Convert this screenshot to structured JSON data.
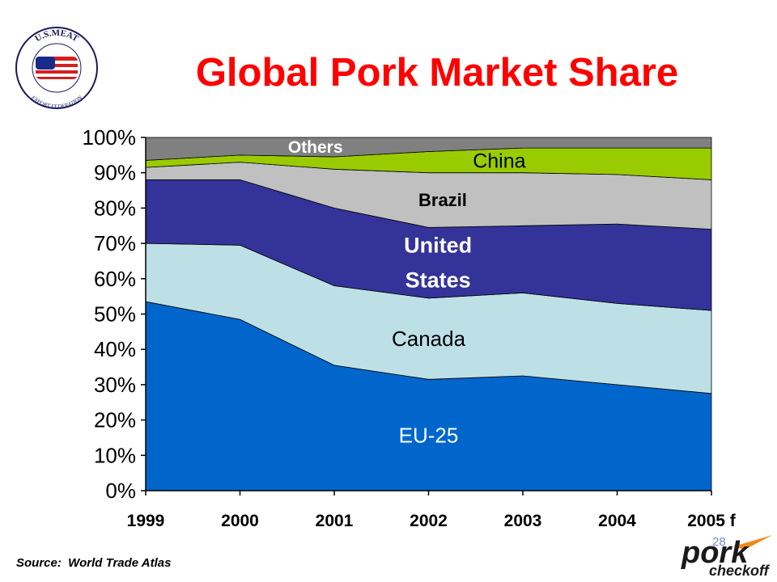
{
  "title": "Global Pork Market Share",
  "source": "Source:  World Trade Atlas",
  "page_number": "28",
  "logos": {
    "usmef": {
      "top_text": "U.S.MEAT",
      "bottom_text": "EXPORT FEDERATION"
    },
    "pork": {
      "word": "pork",
      "sub": "checkoff"
    }
  },
  "chart_data": {
    "type": "area",
    "stacked": true,
    "percent": true,
    "categories": [
      "1999",
      "2000",
      "2001",
      "2002",
      "2003",
      "2004",
      "2005 f"
    ],
    "ylim": [
      0,
      100
    ],
    "yticks": [
      "0%",
      "10%",
      "20%",
      "30%",
      "40%",
      "50%",
      "60%",
      "70%",
      "80%",
      "90%",
      "100%"
    ],
    "grid": false,
    "legend": "none",
    "series": [
      {
        "name": "EU-25",
        "color": "#0066cc",
        "label_color": "#ffffff",
        "values": [
          53.5,
          48.5,
          35.5,
          31.5,
          32.5,
          30.0,
          27.5
        ]
      },
      {
        "name": "Canada",
        "color": "#bde0e6",
        "label_color": "#000000",
        "values": [
          16.5,
          21.0,
          22.5,
          23.0,
          23.5,
          23.0,
          23.5
        ]
      },
      {
        "name": "United States",
        "label_lines": [
          "United",
          "States"
        ],
        "color": "#333399",
        "label_color": "#ffffff",
        "values": [
          18.0,
          18.5,
          22.0,
          20.0,
          19.0,
          22.5,
          23.0
        ]
      },
      {
        "name": "Brazil",
        "color": "#c0c0c0",
        "label_color": "#000000",
        "values": [
          3.5,
          5.0,
          11.0,
          15.5,
          15.0,
          14.0,
          14.0
        ]
      },
      {
        "name": "China",
        "color": "#99cc00",
        "label_color": "#000000",
        "values": [
          2.0,
          2.0,
          3.5,
          6.0,
          7.0,
          7.5,
          9.0
        ]
      },
      {
        "name": "Others",
        "color": "#808080",
        "label_color": "#ffffff",
        "values": [
          6.5,
          5.0,
          5.5,
          4.0,
          3.0,
          3.0,
          3.0
        ]
      }
    ]
  }
}
